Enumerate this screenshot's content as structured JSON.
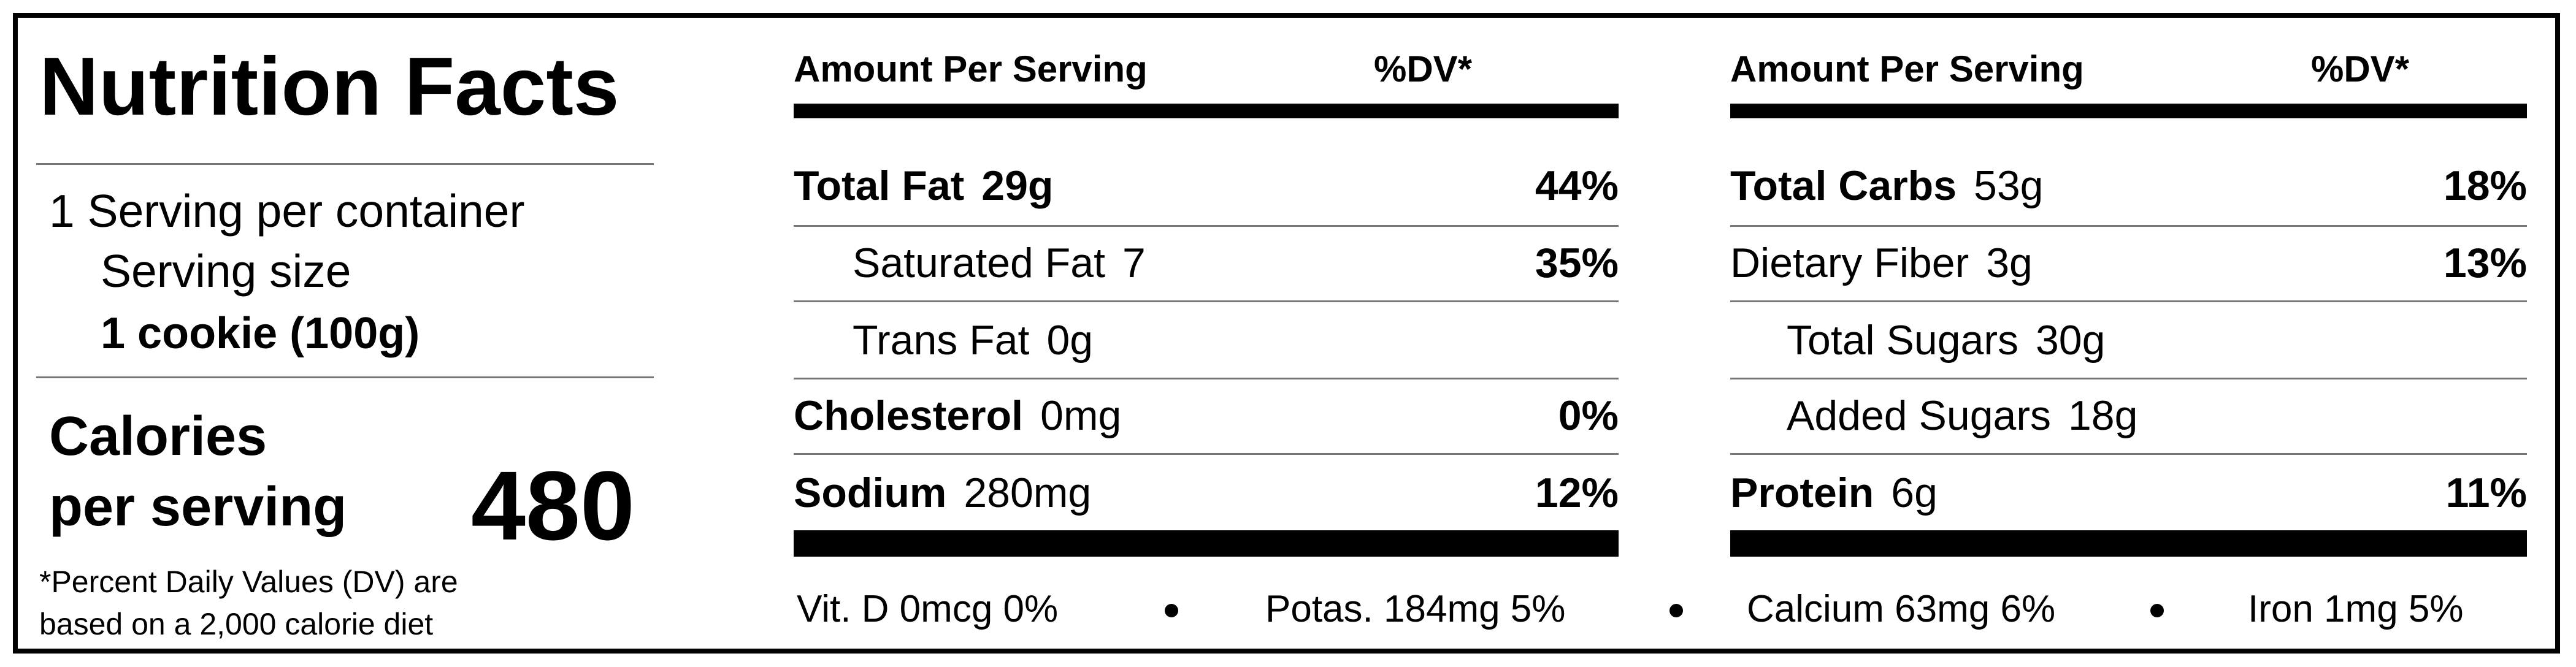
{
  "title": "Nutrition Facts",
  "serving": {
    "per_container": "1 Serving per container",
    "size_label": "Serving size",
    "size": "1 cookie (100g)"
  },
  "calories": {
    "label_line1": "Calories",
    "label_line2": "per serving",
    "value": "480"
  },
  "footnote": {
    "line1": "*Percent Daily Values (DV) are",
    "line2": "based on a 2,000 calorie diet"
  },
  "panels": [
    {
      "header": {
        "amount": "Amount Per Serving",
        "dv": "%DV*"
      },
      "rows": [
        {
          "name": "Total Fat",
          "amount": "29g",
          "dv": "44%"
        },
        {
          "name": "Saturated Fat",
          "amount": "7",
          "dv": "35%"
        },
        {
          "name": "Trans Fat",
          "amount": "0g"
        },
        {
          "name": "Cholesterol",
          "amount": "0mg",
          "dv": "0%"
        },
        {
          "name": "Sodium",
          "amount": "280mg",
          "dv": "12%"
        }
      ]
    },
    {
      "header": {
        "amount": "Amount Per Serving",
        "dv": "%DV*"
      },
      "rows": [
        {
          "name": "Total Carbs",
          "amount": "53g",
          "dv": "18%"
        },
        {
          "name": "Dietary Fiber",
          "amount": "3g",
          "dv": "13%"
        },
        {
          "name": "Total Sugars",
          "amount": "30g"
        },
        {
          "name": "Added Sugars",
          "amount": "18g"
        },
        {
          "name": "Protein",
          "amount": "6g",
          "dv": "11%"
        }
      ]
    }
  ],
  "minerals": [
    "Vit. D 0mcg  0%",
    "Potas. 184mg 5%",
    "Calcium 63mg 6%",
    "Iron 1mg 5%"
  ]
}
